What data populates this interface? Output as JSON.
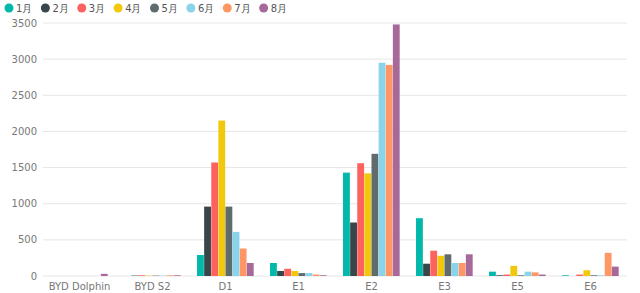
{
  "chart_data": {
    "type": "bar",
    "categories": [
      "BYD Dolphin",
      "BYD S2",
      "D1",
      "E1",
      "E2",
      "E3",
      "E5",
      "E6"
    ],
    "series": [
      {
        "name": "1月",
        "color": "#01B8AA",
        "values": [
          0,
          0,
          290,
          180,
          1430,
          800,
          60,
          10
        ]
      },
      {
        "name": "2月",
        "color": "#374649",
        "values": [
          0,
          5,
          960,
          70,
          740,
          170,
          10,
          0
        ]
      },
      {
        "name": "3月",
        "color": "#FD625E",
        "values": [
          0,
          10,
          1570,
          100,
          1560,
          350,
          20,
          20
        ]
      },
      {
        "name": "4月",
        "color": "#F2C80F",
        "values": [
          0,
          5,
          2150,
          70,
          1420,
          280,
          140,
          80
        ]
      },
      {
        "name": "5月",
        "color": "#5F6B6D",
        "values": [
          0,
          5,
          960,
          40,
          1690,
          300,
          10,
          10
        ]
      },
      {
        "name": "6月",
        "color": "#8AD4EB",
        "values": [
          0,
          5,
          610,
          40,
          2950,
          180,
          60,
          10
        ]
      },
      {
        "name": "7月",
        "color": "#FE9666",
        "values": [
          0,
          10,
          380,
          20,
          2920,
          180,
          50,
          320
        ]
      },
      {
        "name": "8月",
        "color": "#A66999",
        "values": [
          30,
          10,
          180,
          10,
          3480,
          300,
          20,
          130
        ]
      }
    ],
    "ylim": [
      0,
      3500
    ],
    "yticks": [
      0,
      500,
      1000,
      1500,
      2000,
      2500,
      3000,
      3500
    ],
    "grid": true,
    "legend": "top-left"
  }
}
